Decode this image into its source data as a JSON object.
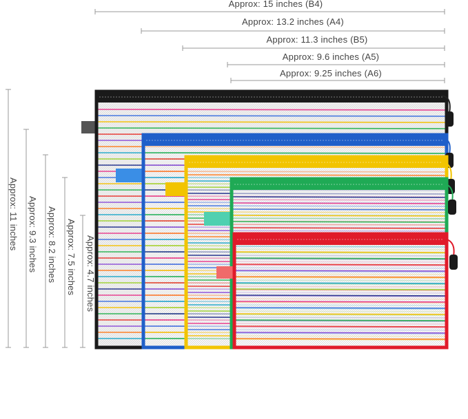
{
  "widths": [
    {
      "label": "Approx: 15 inches (B4)"
    },
    {
      "label": "Approx: 13.2 inches (A4)"
    },
    {
      "label": "Approx: 11.3 inches (B5)"
    },
    {
      "label": "Approx: 9.6 inches (A5)"
    },
    {
      "label": "Approx: 9.25 inches (A6)"
    }
  ],
  "heights": [
    {
      "label": "Approx: 11 inches"
    },
    {
      "label": "Approx: 9.3 inches"
    },
    {
      "label": "Approx: 8.2 inches"
    },
    {
      "label": "Approx: 7.5 inches"
    },
    {
      "label": "Approx: 4.7 inches"
    }
  ],
  "colors": {
    "line": "#9a9a9a",
    "bag_b4": "#1a1a1a",
    "bag_a4": "#1f5fc9",
    "bag_b5": "#f2c400",
    "bag_a5": "#1faa55",
    "bag_a6": "#e01b2a",
    "stripes": [
      "#e8348a",
      "#3a6fe0",
      "#f5c000",
      "#22b14c",
      "#e8302a",
      "#8a4ad8",
      "#ff7a1a",
      "#1aa7c9",
      "#9bd12a",
      "#1b2a8a"
    ]
  }
}
